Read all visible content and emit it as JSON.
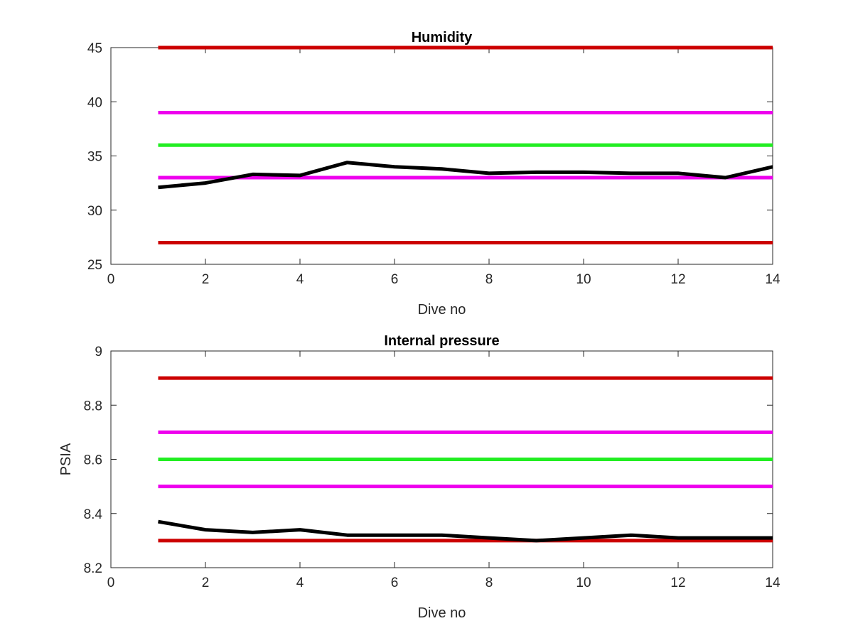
{
  "chart_data": [
    {
      "type": "line",
      "title": "Humidity",
      "xlabel": "Dive no",
      "ylabel": "",
      "xlim": [
        0,
        14
      ],
      "ylim": [
        25,
        45
      ],
      "xticks": [
        0,
        2,
        4,
        6,
        8,
        10,
        12,
        14
      ],
      "yticks": [
        25,
        30,
        35,
        40,
        45
      ],
      "grid": false,
      "legend": "none",
      "series": [
        {
          "color": "#cc0000",
          "x": [
            1,
            14
          ],
          "y": [
            45,
            45
          ]
        },
        {
          "color": "#ee00ee",
          "x": [
            1,
            14
          ],
          "y": [
            39,
            39
          ]
        },
        {
          "color": "#22ee22",
          "x": [
            1,
            14
          ],
          "y": [
            36,
            36
          ]
        },
        {
          "color": "#ee00ee",
          "x": [
            1,
            14
          ],
          "y": [
            33,
            33
          ]
        },
        {
          "color": "#cc0000",
          "x": [
            1,
            14
          ],
          "y": [
            27,
            27
          ]
        },
        {
          "color": "#000000",
          "x": [
            1,
            2,
            3,
            4,
            5,
            6,
            7,
            8,
            9,
            10,
            11,
            12,
            13,
            14
          ],
          "y": [
            32.1,
            32.5,
            33.3,
            33.2,
            34.4,
            34.0,
            33.8,
            33.4,
            33.5,
            33.5,
            33.4,
            33.4,
            33.0,
            34.0
          ]
        }
      ]
    },
    {
      "type": "line",
      "title": "Internal pressure",
      "xlabel": "Dive no",
      "ylabel": "PSIA",
      "xlim": [
        0,
        14
      ],
      "ylim": [
        8.2,
        9
      ],
      "xticks": [
        0,
        2,
        4,
        6,
        8,
        10,
        12,
        14
      ],
      "yticks": [
        8.2,
        8.4,
        8.6,
        8.8,
        9
      ],
      "grid": false,
      "legend": "none",
      "series": [
        {
          "color": "#cc0000",
          "x": [
            1,
            14
          ],
          "y": [
            8.9,
            8.9
          ]
        },
        {
          "color": "#ee00ee",
          "x": [
            1,
            14
          ],
          "y": [
            8.7,
            8.7
          ]
        },
        {
          "color": "#22ee22",
          "x": [
            1,
            14
          ],
          "y": [
            8.6,
            8.6
          ]
        },
        {
          "color": "#ee00ee",
          "x": [
            1,
            14
          ],
          "y": [
            8.5,
            8.5
          ]
        },
        {
          "color": "#cc0000",
          "x": [
            1,
            14
          ],
          "y": [
            8.3,
            8.3
          ]
        },
        {
          "color": "#000000",
          "x": [
            1,
            2,
            3,
            4,
            5,
            6,
            7,
            8,
            9,
            10,
            11,
            12,
            13,
            14
          ],
          "y": [
            8.37,
            8.34,
            8.33,
            8.34,
            8.32,
            8.32,
            8.32,
            8.31,
            8.3,
            8.31,
            8.32,
            8.31,
            8.31,
            8.31
          ]
        }
      ]
    }
  ]
}
